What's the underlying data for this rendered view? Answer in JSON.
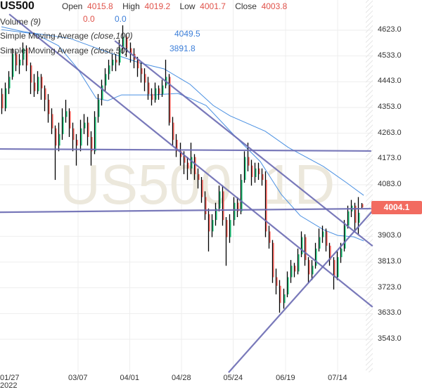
{
  "header": {
    "symbol": "US500",
    "open_label": "Open",
    "open": "4015.8",
    "high_label": "High",
    "high": "4019.2",
    "low_label": "Low",
    "low": "4001.7",
    "close_label": "Close",
    "close": "4003.8",
    "volume_label": "Volume",
    "volume_param": "(9)",
    "volume_val1": "0.0",
    "volume_val2": "0.0",
    "sma100_label": "Simple Moving Average",
    "sma100_param": "(close,100)",
    "sma100_value": "4049.5",
    "sma50_label": "Simple Moving Average",
    "sma50_param": "(close,50)",
    "sma50_value": "3891.8"
  },
  "watermark": "US500, 1D",
  "colors": {
    "up": "#22c27a",
    "down": "#f0605a",
    "wick": "#000000",
    "trendline": "#6a6ab2",
    "sma": "#4a90e2",
    "last_price": "#f26b60",
    "grid": "#eeeeee",
    "watermark": "#ece8dc"
  },
  "chart_data": {
    "type": "candlestick",
    "ylim": [
      3480,
      4680
    ],
    "y_ticks": [
      "4623.0",
      "4533.0",
      "4443.0",
      "4353.0",
      "4263.0",
      "4173.0",
      "4083.0",
      "3903.0",
      "3813.0",
      "3723.0",
      "3633.0",
      "3543.0"
    ],
    "x_ticks": [
      {
        "label": "01/27",
        "sub": "2022",
        "bar": 2
      },
      {
        "label": "03/07",
        "bar": 21.5
      },
      {
        "label": "04/01",
        "bar": 36
      },
      {
        "label": "04/28",
        "bar": 50.5
      },
      {
        "label": "05/24",
        "bar": 65
      },
      {
        "label": "06/19",
        "bar": 79.7
      },
      {
        "label": "07/14",
        "bar": 94.3
      }
    ],
    "last_price": "4004.1",
    "grid": true,
    "candles": [
      [
        4400,
        4420,
        4330,
        4350
      ],
      [
        4350,
        4440,
        4340,
        4420
      ],
      [
        4420,
        4480,
        4400,
        4460
      ],
      [
        4460,
        4560,
        4450,
        4540
      ],
      [
        4540,
        4550,
        4480,
        4500
      ],
      [
        4500,
        4540,
        4470,
        4520
      ],
      [
        4520,
        4580,
        4500,
        4560
      ],
      [
        4560,
        4570,
        4480,
        4500
      ],
      [
        4500,
        4510,
        4400,
        4440
      ],
      [
        4440,
        4470,
        4390,
        4410
      ],
      [
        4410,
        4480,
        4400,
        4460
      ],
      [
        4460,
        4470,
        4380,
        4420
      ],
      [
        4420,
        4430,
        4340,
        4380
      ],
      [
        4380,
        4400,
        4300,
        4330
      ],
      [
        4330,
        4350,
        4260,
        4280
      ],
      [
        4280,
        4290,
        4100,
        4220
      ],
      [
        4220,
        4300,
        4200,
        4260
      ],
      [
        4260,
        4350,
        4240,
        4320
      ],
      [
        4320,
        4380,
        4300,
        4340
      ],
      [
        4340,
        4350,
        4250,
        4280
      ],
      [
        4280,
        4300,
        4200,
        4240
      ],
      [
        4240,
        4260,
        4150,
        4220
      ],
      [
        4220,
        4310,
        4200,
        4280
      ],
      [
        4280,
        4330,
        4260,
        4300
      ],
      [
        4300,
        4320,
        4220,
        4250
      ],
      [
        4250,
        4270,
        4150,
        4200
      ],
      [
        4200,
        4340,
        4190,
        4320
      ],
      [
        4320,
        4400,
        4300,
        4380
      ],
      [
        4380,
        4450,
        4360,
        4430
      ],
      [
        4430,
        4490,
        4410,
        4470
      ],
      [
        4470,
        4520,
        4450,
        4500
      ],
      [
        4500,
        4540,
        4480,
        4520
      ],
      [
        4520,
        4540,
        4480,
        4510
      ],
      [
        4510,
        4590,
        4500,
        4560
      ],
      [
        4560,
        4640,
        4540,
        4600
      ],
      [
        4600,
        4610,
        4530,
        4560
      ],
      [
        4560,
        4580,
        4510,
        4540
      ],
      [
        4540,
        4560,
        4490,
        4520
      ],
      [
        4520,
        4530,
        4460,
        4490
      ],
      [
        4490,
        4510,
        4440,
        4470
      ],
      [
        4470,
        4490,
        4410,
        4440
      ],
      [
        4440,
        4460,
        4380,
        4400
      ],
      [
        4400,
        4420,
        4360,
        4380
      ],
      [
        4380,
        4440,
        4370,
        4420
      ],
      [
        4420,
        4430,
        4380,
        4400
      ],
      [
        4400,
        4450,
        4390,
        4430
      ],
      [
        4430,
        4520,
        4420,
        4460
      ],
      [
        4460,
        4470,
        4290,
        4300
      ],
      [
        4300,
        4320,
        4220,
        4240
      ],
      [
        4240,
        4260,
        4180,
        4200
      ],
      [
        4200,
        4230,
        4150,
        4180
      ],
      [
        4180,
        4200,
        4120,
        4160
      ],
      [
        4160,
        4180,
        4100,
        4140
      ],
      [
        4140,
        4230,
        4120,
        4180
      ],
      [
        4180,
        4190,
        4100,
        4120
      ],
      [
        4120,
        4140,
        4070,
        4100
      ],
      [
        4100,
        4110,
        4020,
        4040
      ],
      [
        4040,
        4060,
        3960,
        3980
      ],
      [
        3980,
        4000,
        3850,
        3920
      ],
      [
        3920,
        3980,
        3900,
        3960
      ],
      [
        3960,
        4020,
        3940,
        4000
      ],
      [
        4000,
        4080,
        3990,
        4060
      ],
      [
        4060,
        4080,
        3940,
        3960
      ],
      [
        3960,
        3970,
        3800,
        3900
      ],
      [
        3900,
        3980,
        3880,
        3960
      ],
      [
        3960,
        4040,
        3940,
        4020
      ],
      [
        4020,
        4040,
        3970,
        3990
      ],
      [
        3990,
        4120,
        3980,
        4100
      ],
      [
        4100,
        4200,
        4090,
        4180
      ],
      [
        4180,
        4230,
        4130,
        4150
      ],
      [
        4150,
        4170,
        4080,
        4110
      ],
      [
        4110,
        4160,
        4090,
        4140
      ],
      [
        4140,
        4160,
        4100,
        4120
      ],
      [
        4120,
        4140,
        4080,
        4100
      ],
      [
        4100,
        4130,
        3900,
        3920
      ],
      [
        3920,
        3940,
        3860,
        3880
      ],
      [
        3880,
        3890,
        3740,
        3760
      ],
      [
        3760,
        3790,
        3700,
        3730
      ],
      [
        3730,
        3750,
        3636,
        3670
      ],
      [
        3670,
        3720,
        3650,
        3700
      ],
      [
        3700,
        3780,
        3690,
        3760
      ],
      [
        3760,
        3820,
        3740,
        3800
      ],
      [
        3800,
        3810,
        3760,
        3780
      ],
      [
        3780,
        3860,
        3770,
        3840
      ],
      [
        3840,
        3920,
        3830,
        3900
      ],
      [
        3900,
        3910,
        3800,
        3820
      ],
      [
        3820,
        3830,
        3740,
        3770
      ],
      [
        3770,
        3820,
        3750,
        3800
      ],
      [
        3800,
        3880,
        3790,
        3860
      ],
      [
        3860,
        3930,
        3850,
        3900
      ],
      [
        3900,
        3940,
        3880,
        3920
      ],
      [
        3920,
        3930,
        3850,
        3870
      ],
      [
        3870,
        3880,
        3800,
        3820
      ],
      [
        3820,
        3830,
        3717,
        3760
      ],
      [
        3760,
        3850,
        3750,
        3830
      ],
      [
        3830,
        3880,
        3810,
        3860
      ],
      [
        3860,
        3960,
        3850,
        3940
      ],
      [
        3940,
        4010,
        3930,
        3990
      ],
      [
        3990,
        4030,
        3970,
        4010
      ],
      [
        4010,
        4020,
        3920,
        3950
      ],
      [
        3950,
        4040,
        3910,
        3985
      ],
      [
        4015.8,
        4019.2,
        4001.7,
        4003.8
      ]
    ],
    "trendlines": [
      {
        "from": [
          -0.4,
          4208
        ],
        "to": [
          103.7,
          4201
        ]
      },
      {
        "from": [
          -0.4,
          3987
        ],
        "to": [
          103.7,
          3999.6
        ]
      },
      {
        "from": [
          2.2,
          4679
        ],
        "to": [
          104.1,
          3656
        ]
      },
      {
        "from": [
          31.8,
          4586
        ],
        "to": [
          104.1,
          3869
        ]
      },
      {
        "from": [
          63.7,
          3427
        ],
        "to": [
          104.1,
          3992
        ]
      }
    ],
    "sma100": [
      [
        0,
        4635
      ],
      [
        6.1,
        4618
      ],
      [
        19.3,
        4594
      ],
      [
        29.2,
        4549
      ],
      [
        39,
        4508
      ],
      [
        45.6,
        4488
      ],
      [
        52.9,
        4434
      ],
      [
        59.4,
        4360
      ],
      [
        64.1,
        4324
      ],
      [
        74,
        4270
      ],
      [
        80.5,
        4213
      ],
      [
        90.3,
        4147
      ],
      [
        96.8,
        4090
      ],
      [
        101.6,
        4046
      ]
    ],
    "sma50": [
      [
        0,
        4625
      ],
      [
        9.5,
        4610
      ],
      [
        16,
        4569
      ],
      [
        21.3,
        4490
      ],
      [
        26.6,
        4385
      ],
      [
        29.8,
        4377
      ],
      [
        33.7,
        4397
      ],
      [
        42.4,
        4397
      ],
      [
        49.5,
        4402
      ],
      [
        52.9,
        4385
      ],
      [
        57.4,
        4360
      ],
      [
        66.1,
        4245
      ],
      [
        72.6,
        4164
      ],
      [
        78.5,
        4049
      ],
      [
        83.8,
        3975
      ],
      [
        90.3,
        3926
      ],
      [
        94.3,
        3906
      ],
      [
        98.8,
        3901
      ],
      [
        101.6,
        3887
      ]
    ]
  }
}
